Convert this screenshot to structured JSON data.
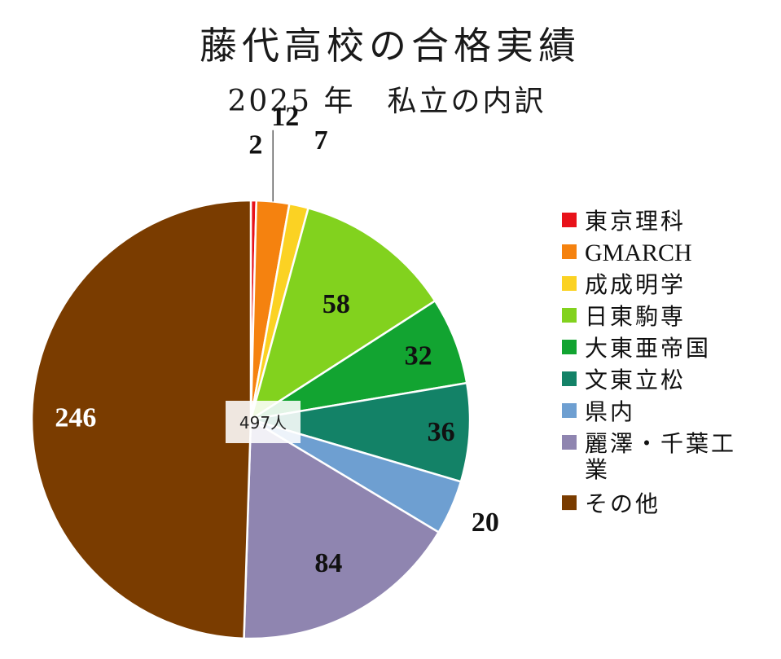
{
  "chart_data": {
    "type": "pie",
    "title": "藤代高校の合格実績",
    "subtitle": "2025 年　私立の内訳",
    "total_label": "497人",
    "series": [
      {
        "name": "東京理科",
        "value": 2,
        "color": "#e8121a"
      },
      {
        "name": "GMARCH",
        "value": 12,
        "color": "#f5820f"
      },
      {
        "name": "成成明学",
        "value": 7,
        "color": "#fbd223"
      },
      {
        "name": "日東駒専",
        "value": 58,
        "color": "#82d21e"
      },
      {
        "name": "大東亜帝国",
        "value": 32,
        "color": "#12a431"
      },
      {
        "name": "文東立松",
        "value": 36,
        "color": "#138267"
      },
      {
        "name": "県内",
        "value": 20,
        "color": "#6e9fd1"
      },
      {
        "name": "麗澤・千葉工業",
        "value": 84,
        "color": "#8f85b0"
      },
      {
        "name": "その他",
        "value": 246,
        "color": "#7a3c00"
      }
    ],
    "legend_position": "right",
    "legend_labels": [
      "東京理科",
      "GMARCH",
      "成成明学",
      "日東駒専",
      "大東亜帝国",
      "文東立松",
      "県内",
      "麗澤・千葉工",
      "業",
      "その他"
    ]
  }
}
